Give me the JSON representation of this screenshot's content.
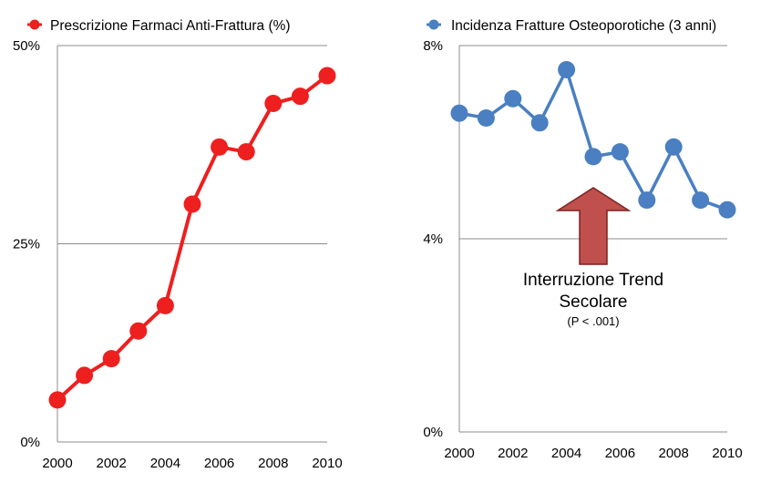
{
  "chart_data": [
    {
      "type": "line",
      "legend_label": "Prescrizione Farmaci Anti-Frattura (%)",
      "legend_position": "top",
      "color": "#ee1f1f",
      "x": [
        2000,
        2001,
        2002,
        2003,
        2004,
        2005,
        2006,
        2007,
        2008,
        2009,
        2010
      ],
      "values": [
        5.3,
        8.4,
        10.5,
        14.0,
        17.2,
        30.0,
        37.2,
        36.6,
        42.7,
        43.6,
        46.2
      ],
      "x_tick_labels": [
        "2000",
        "2002",
        "2004",
        "2006",
        "2008",
        "2010"
      ],
      "y_tick_labels": [
        "0%",
        "25%",
        "50%"
      ],
      "ylim": [
        0,
        50
      ],
      "grid": "horizontal"
    },
    {
      "type": "line",
      "legend_label": "Incidenza Fratture Osteoporotiche (3 anni)",
      "legend_position": "top",
      "color": "#4a7fc1",
      "x": [
        2000,
        2001,
        2002,
        2003,
        2004,
        2005,
        2006,
        2007,
        2008,
        2009,
        2010
      ],
      "values": [
        6.6,
        6.5,
        6.9,
        6.4,
        7.5,
        5.7,
        5.8,
        4.8,
        5.9,
        4.8,
        4.6
      ],
      "x_tick_labels": [
        "2000",
        "2002",
        "2004",
        "2006",
        "2008",
        "2010"
      ],
      "y_tick_labels": [
        "0%",
        "4%",
        "8%"
      ],
      "ylim": [
        0,
        8
      ],
      "grid": "horizontal",
      "annotation": {
        "line1": "Interruzione Trend",
        "line2": "Secolare",
        "line3": "(P < .001)",
        "arrow_color": "#c0504d",
        "points_to_year": 2005
      }
    }
  ]
}
